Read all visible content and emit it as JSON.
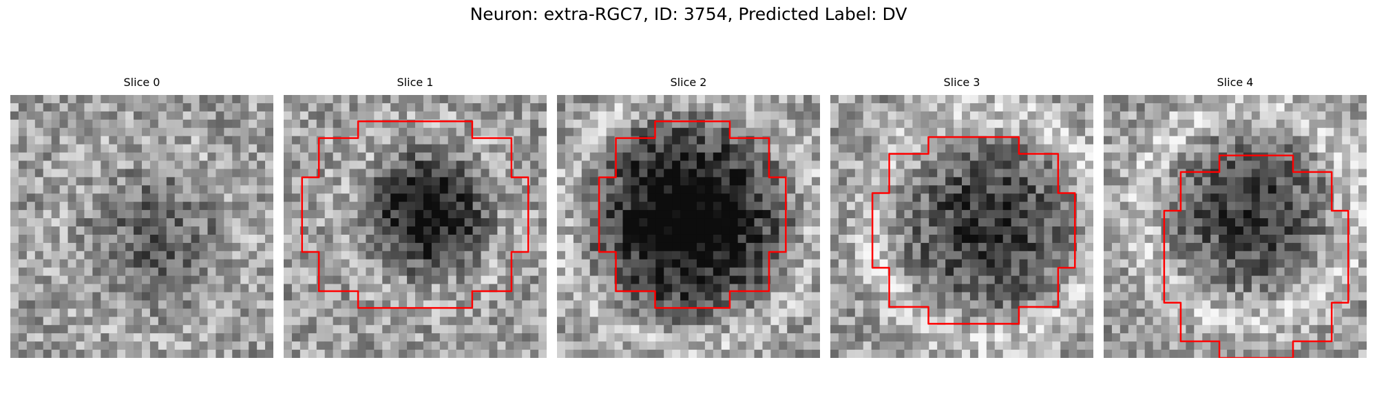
{
  "figure": {
    "title": "Neuron: extra-RGC7, ID: 3754, Predicted Label: DV",
    "contour_color": "#ff0000",
    "grid_size": 32,
    "panels": [
      {
        "label": "Slice 0",
        "seed": 11,
        "dark_center": [
          0.55,
          0.55
        ],
        "dark_radius": 0.25,
        "dark_strength": 0.25,
        "ring_strength": 0.15,
        "contour": null
      },
      {
        "label": "Slice 1",
        "seed": 23,
        "dark_center": [
          0.55,
          0.45
        ],
        "dark_radius": 0.22,
        "dark_strength": 0.6,
        "ring_strength": 0.25,
        "contour": [
          0.07,
          0.93,
          0.1,
          0.81
        ]
      },
      {
        "label": "Slice 2",
        "seed": 37,
        "dark_center": [
          0.5,
          0.47
        ],
        "dark_radius": 0.33,
        "dark_strength": 0.75,
        "ring_strength": 0.4,
        "contour": [
          0.16,
          0.87,
          0.1,
          0.81
        ]
      },
      {
        "label": "Slice 3",
        "seed": 41,
        "dark_center": [
          0.6,
          0.5
        ],
        "dark_radius": 0.3,
        "dark_strength": 0.45,
        "ring_strength": 0.45,
        "contour": [
          0.16,
          0.93,
          0.16,
          0.87
        ]
      },
      {
        "label": "Slice 4",
        "seed": 53,
        "dark_center": [
          0.55,
          0.45
        ],
        "dark_radius": 0.28,
        "dark_strength": 0.4,
        "ring_strength": 0.45,
        "contour": [
          0.23,
          0.93,
          0.23,
          1.0
        ]
      }
    ]
  }
}
